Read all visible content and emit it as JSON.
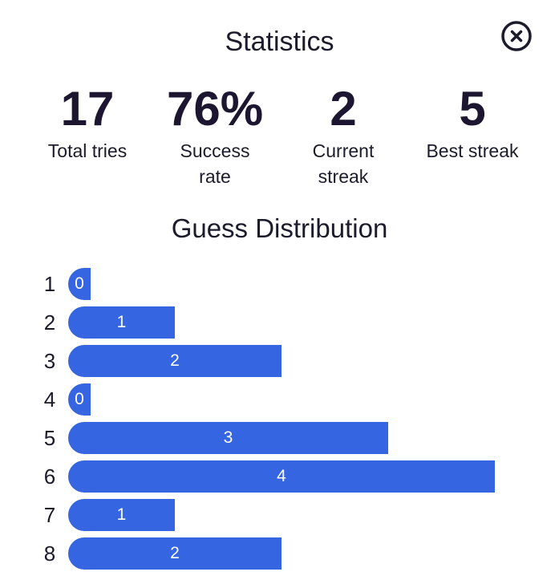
{
  "title": "Statistics",
  "close_icon": "close-circle-icon",
  "accent_color": "#3565e0",
  "stats": [
    {
      "value": "17",
      "label": "Total tries"
    },
    {
      "value": "76%",
      "label": "Success\nrate"
    },
    {
      "value": "2",
      "label": "Current\nstreak"
    },
    {
      "value": "5",
      "label": "Best streak"
    }
  ],
  "distribution_title": "Guess Distribution",
  "distribution": [
    {
      "guess": "1",
      "count": 0
    },
    {
      "guess": "2",
      "count": 1
    },
    {
      "guess": "3",
      "count": 2
    },
    {
      "guess": "4",
      "count": 0
    },
    {
      "guess": "5",
      "count": 3
    },
    {
      "guess": "6",
      "count": 4
    },
    {
      "guess": "7",
      "count": 1
    },
    {
      "guess": "8",
      "count": 2
    }
  ]
}
